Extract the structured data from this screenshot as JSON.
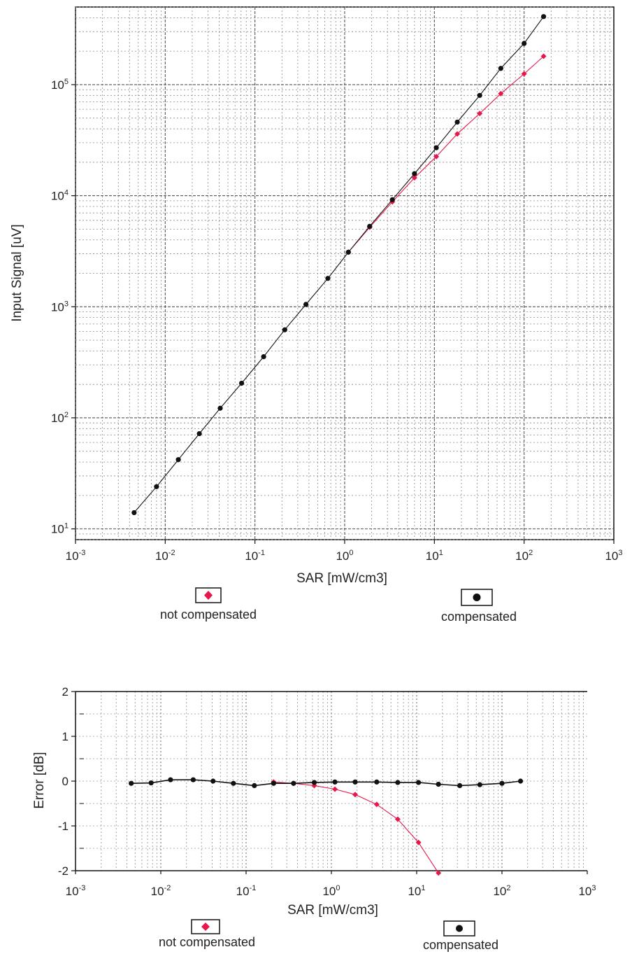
{
  "chart_data": [
    {
      "type": "line",
      "xlabel": "SAR [mW/cm3]",
      "ylabel": "Input Signal [uV]",
      "xscale": "log",
      "yscale": "log",
      "xlim": [
        0.001,
        1000
      ],
      "ylim": [
        8,
        500000
      ],
      "grid": true,
      "x_ticks": [
        {
          "base": "10",
          "exp": "-3",
          "value": 0.001
        },
        {
          "base": "10",
          "exp": "-2",
          "value": 0.01
        },
        {
          "base": "10",
          "exp": "-1",
          "value": 0.1
        },
        {
          "base": "10",
          "exp": "0",
          "value": 1
        },
        {
          "base": "10",
          "exp": "1",
          "value": 10
        },
        {
          "base": "10",
          "exp": "2",
          "value": 100
        },
        {
          "base": "10",
          "exp": "3",
          "value": 1000
        }
      ],
      "y_ticks": [
        {
          "base": "10",
          "exp": "1",
          "value": 10
        },
        {
          "base": "10",
          "exp": "2",
          "value": 100
        },
        {
          "base": "10",
          "exp": "3",
          "value": 1000
        },
        {
          "base": "10",
          "exp": "4",
          "value": 10000
        },
        {
          "base": "10",
          "exp": "5",
          "value": 100000
        }
      ],
      "series": [
        {
          "name": "not compensated",
          "color": "#e8174a",
          "marker": "diamond",
          "x": [
            1.1,
            1.9,
            3.4,
            6,
            10.5,
            18,
            32,
            55,
            100,
            165
          ],
          "y": [
            3100,
            5200,
            8800,
            14500,
            22500,
            36000,
            55000,
            83000,
            125000,
            180000
          ]
        },
        {
          "name": "compensated",
          "color": "#111111",
          "marker": "circle",
          "x": [
            0.0045,
            0.008,
            0.014,
            0.024,
            0.041,
            0.071,
            0.125,
            0.215,
            0.37,
            0.65,
            1.1,
            1.9,
            3.4,
            6,
            10.5,
            18,
            32,
            55,
            100,
            165
          ],
          "y": [
            14,
            24,
            42,
            72,
            122,
            205,
            355,
            620,
            1050,
            1800,
            3100,
            5300,
            9200,
            15800,
            27000,
            46000,
            80000,
            140000,
            235000,
            410000
          ]
        }
      ]
    },
    {
      "type": "line",
      "xlabel": "SAR [mW/cm3]",
      "ylabel": "Error [dB]",
      "xscale": "log",
      "xlim": [
        0.001,
        1000
      ],
      "ylim": [
        -2,
        2
      ],
      "grid": true,
      "x_ticks": [
        {
          "base": "10",
          "exp": "-3",
          "value": 0.001
        },
        {
          "base": "10",
          "exp": "-2",
          "value": 0.01
        },
        {
          "base": "10",
          "exp": "-1",
          "value": 0.1
        },
        {
          "base": "10",
          "exp": "0",
          "value": 1
        },
        {
          "base": "10",
          "exp": "1",
          "value": 10
        },
        {
          "base": "10",
          "exp": "2",
          "value": 100
        },
        {
          "base": "10",
          "exp": "3",
          "value": 1000
        }
      ],
      "y_ticks": [
        "2",
        "1",
        "0",
        "-1",
        "-2"
      ],
      "series": [
        {
          "name": "not compensated",
          "color": "#e8174a",
          "marker": "diamond",
          "x": [
            0.21,
            0.36,
            0.63,
            1.1,
            1.9,
            3.4,
            6,
            10.5,
            18
          ],
          "y": [
            -0.02,
            -0.05,
            -0.1,
            -0.18,
            -0.3,
            -0.52,
            -0.85,
            -1.37,
            -2.05
          ]
        },
        {
          "name": "compensated",
          "color": "#111111",
          "marker": "circle",
          "x": [
            0.0045,
            0.0077,
            0.013,
            0.024,
            0.041,
            0.071,
            0.125,
            0.21,
            0.36,
            0.63,
            1.1,
            1.9,
            3.4,
            6,
            10.5,
            18,
            32,
            55,
            100,
            165
          ],
          "y": [
            -0.05,
            -0.04,
            0.03,
            0.03,
            0.0,
            -0.05,
            -0.1,
            -0.05,
            -0.05,
            -0.03,
            -0.02,
            -0.02,
            -0.02,
            -0.03,
            -0.03,
            -0.07,
            -0.1,
            -0.08,
            -0.05,
            0.0
          ]
        }
      ]
    }
  ],
  "legend": {
    "not_compensated": "not compensated",
    "compensated": "compensated"
  }
}
